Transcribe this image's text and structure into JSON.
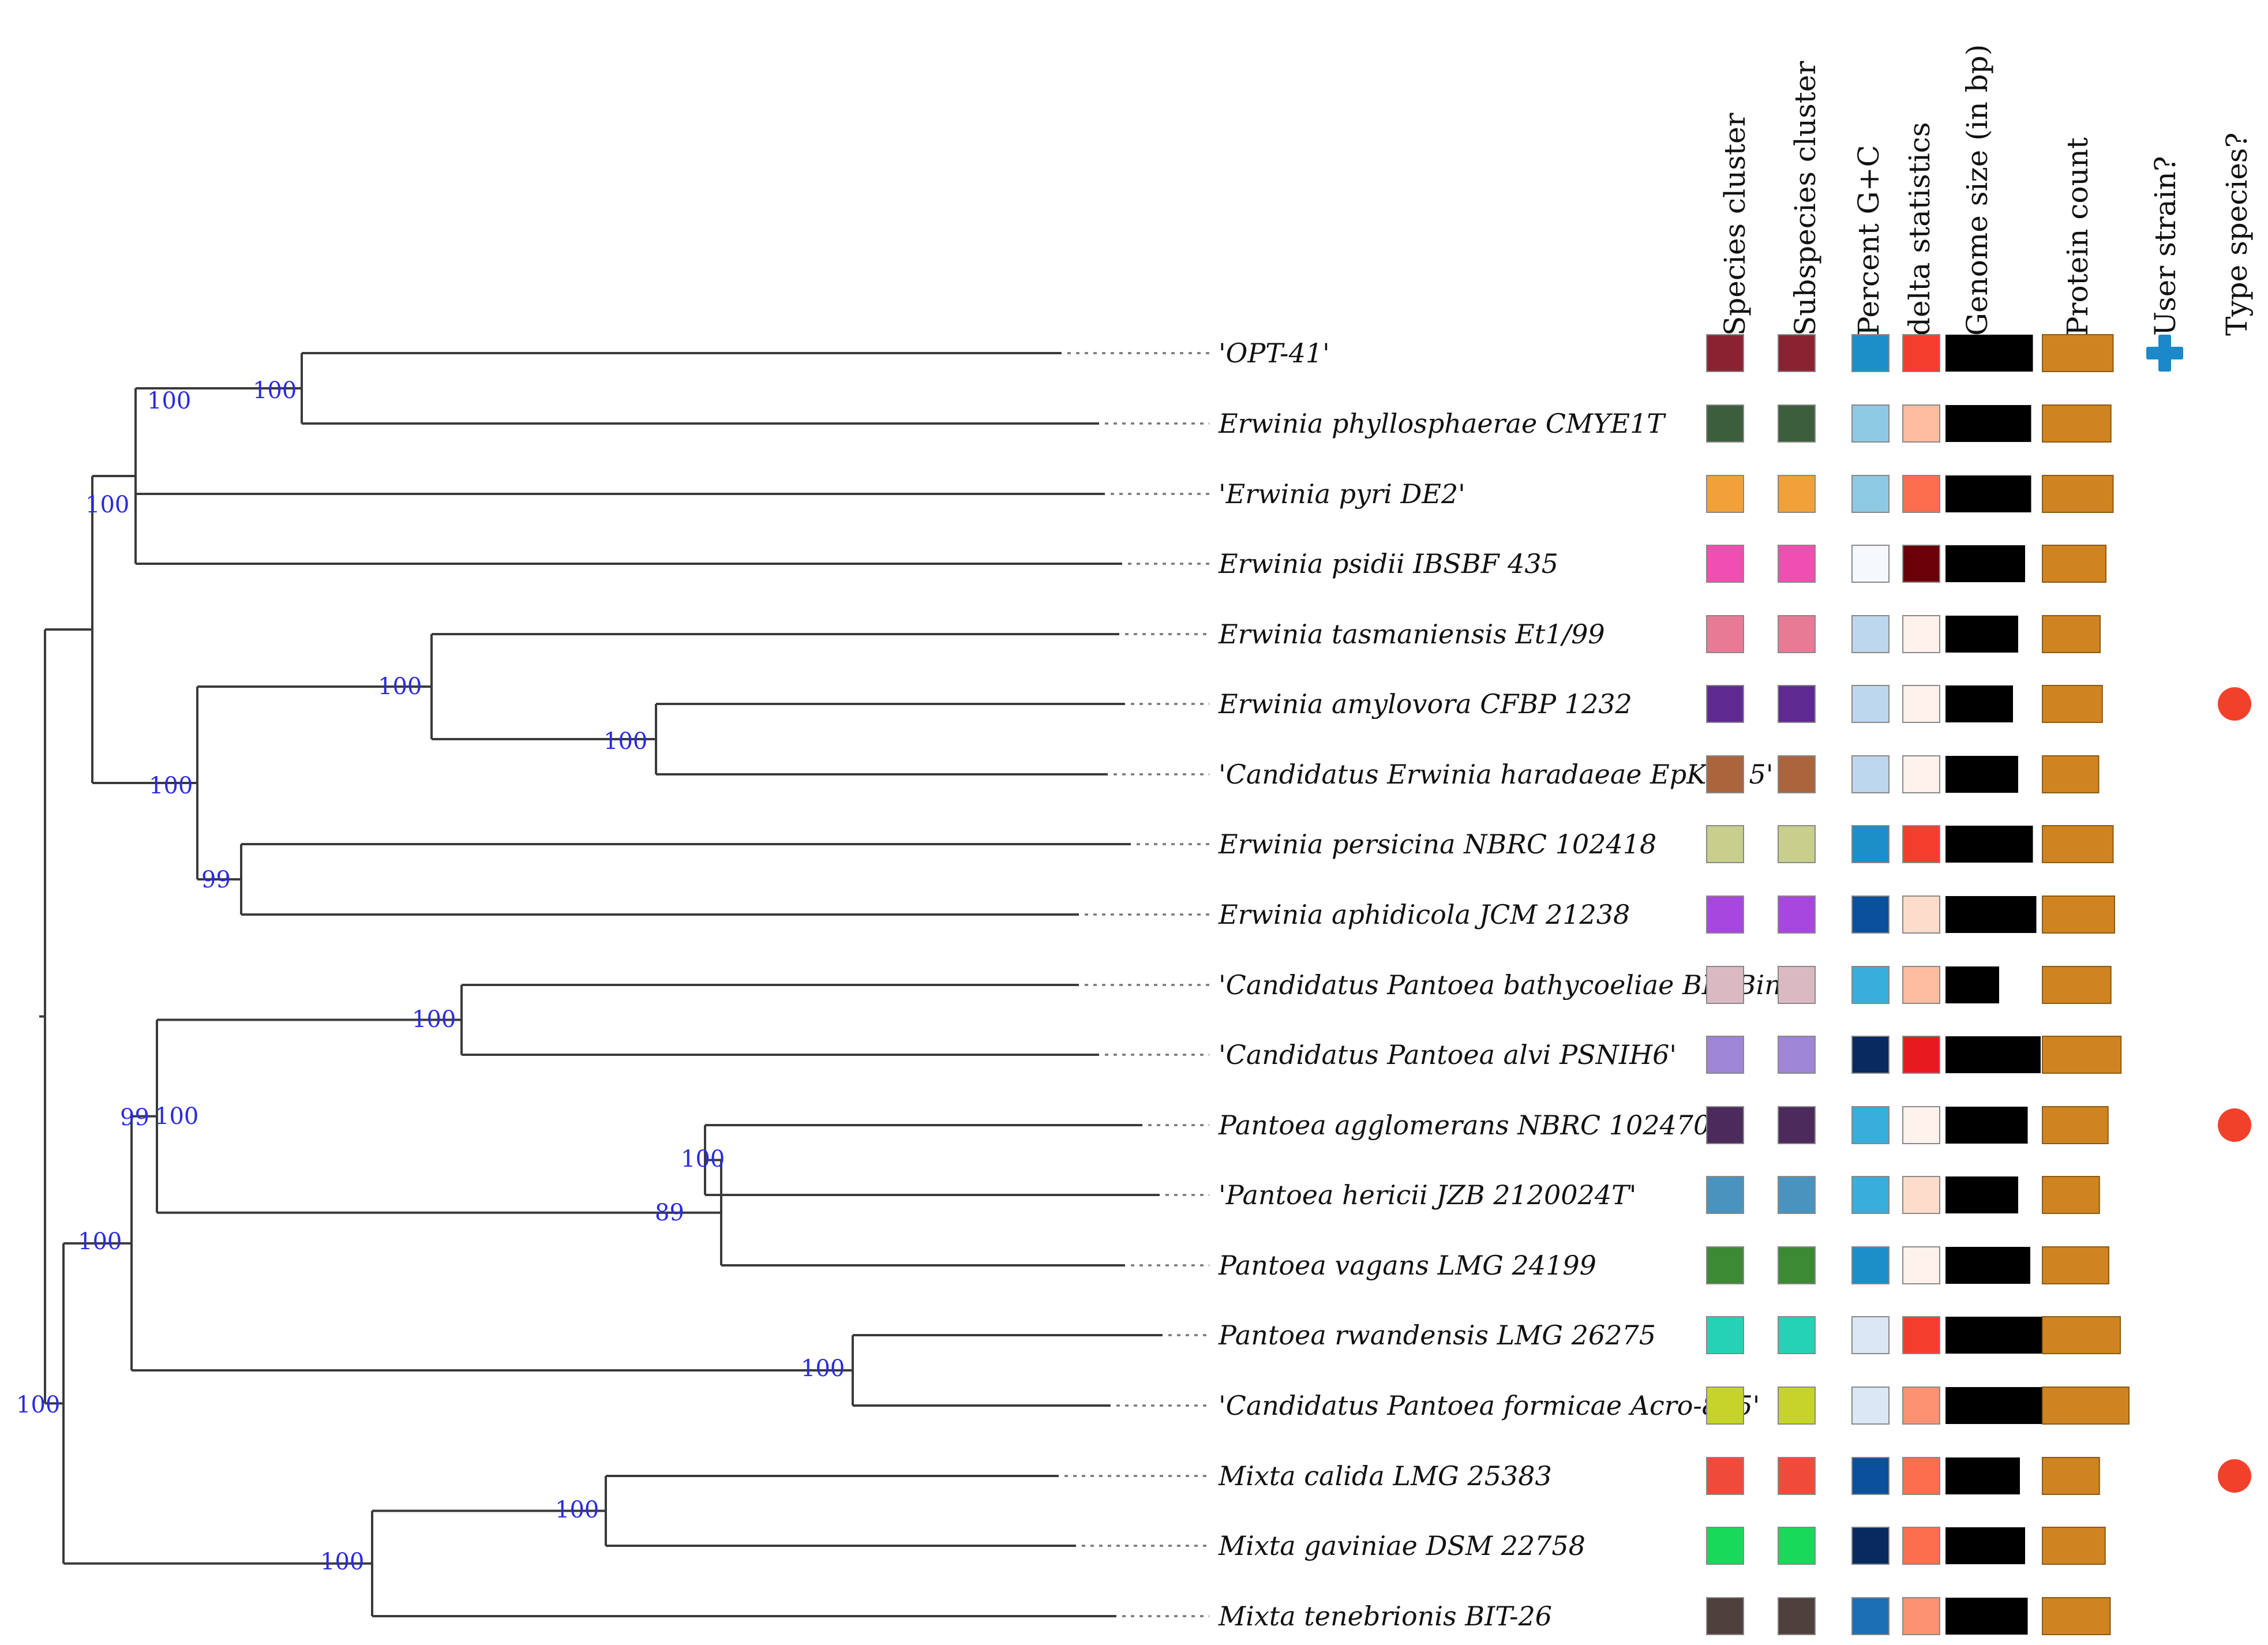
{
  "headers": {
    "species_cluster": "Species cluster",
    "subspecies_cluster": "Subspecies cluster",
    "percent_gc": "Percent G+C",
    "delta_statistics": "delta statistics",
    "genome_size": "Genome size (in bp)",
    "protein_count": "Protein count",
    "user_strain": "User strain?",
    "type_species": "Type species?"
  },
  "colors": {
    "branch": "#3a3a3a",
    "bootstrap_text": "#2a2ae0",
    "genome_bar": "#000000",
    "protein_bar": "#d08421",
    "user_marker": "#1a88c9",
    "type_marker": "#f2412b"
  },
  "user_marker_icon": "plus-icon",
  "type_marker_icon": "filled-circle-icon",
  "nodes": [
    {
      "id": "root",
      "support": "100"
    },
    {
      "id": "n_erw",
      "support": "100"
    },
    {
      "id": "n_a",
      "support": "100"
    },
    {
      "id": "n_opt",
      "support": "100"
    },
    {
      "id": "n_b",
      "support": "100"
    },
    {
      "id": "n_c",
      "support": "100"
    },
    {
      "id": "n_d",
      "support": "100"
    },
    {
      "id": "n_e",
      "support": "99"
    },
    {
      "id": "n_p",
      "support": "100"
    },
    {
      "id": "n_q",
      "support": "99"
    },
    {
      "id": "n_r",
      "support": "100"
    },
    {
      "id": "n_s",
      "support": "100"
    },
    {
      "id": "n_t",
      "support": "89"
    },
    {
      "id": "n_u",
      "support": "100"
    },
    {
      "id": "n_m",
      "support": "100"
    },
    {
      "id": "n_n",
      "support": "100"
    }
  ],
  "leaves": [
    {
      "label": "'OPT-41'",
      "species_color": "#8b2232",
      "subspecies_color": "#8b2232",
      "gc_color": "#1c8fc8",
      "delta_color": "#f53d2e",
      "genome_size": 5.05,
      "protein_count": 4.9,
      "user_strain": true,
      "type_species": false
    },
    {
      "label": "Erwinia phyllosphaerae CMYE1T",
      "species_color": "#3d5e3d",
      "subspecies_color": "#3d5e3d",
      "gc_color": "#8ec9e3",
      "delta_color": "#fdbca0",
      "genome_size": 4.95,
      "protein_count": 4.75,
      "user_strain": false,
      "type_species": false
    },
    {
      "label": "'Erwinia pyri DE2'",
      "species_color": "#f2a03a",
      "subspecies_color": "#f2a03a",
      "gc_color": "#8ec9e3",
      "delta_color": "#fc6e4e",
      "genome_size": 4.95,
      "protein_count": 4.9,
      "user_strain": false,
      "type_species": false
    },
    {
      "label": "Erwinia psidii IBSBF 435",
      "species_color": "#f04eb0",
      "subspecies_color": "#f04eb0",
      "gc_color": "#f5f9fd",
      "delta_color": "#6b0009",
      "genome_size": 4.6,
      "protein_count": 4.4,
      "user_strain": false,
      "type_species": false
    },
    {
      "label": "Erwinia tasmaniensis Et1/99",
      "species_color": "#e87a96",
      "subspecies_color": "#e87a96",
      "gc_color": "#bdd7ee",
      "delta_color": "#fff1ec",
      "genome_size": 4.2,
      "protein_count": 4.0,
      "user_strain": false,
      "type_species": false
    },
    {
      "label": "Erwinia amylovora CFBP 1232",
      "species_color": "#5e2a92",
      "subspecies_color": "#5e2a92",
      "gc_color": "#bdd7ee",
      "delta_color": "#fff1ec",
      "genome_size": 3.9,
      "protein_count": 4.15,
      "user_strain": false,
      "type_species": true
    },
    {
      "label": "'Candidatus Erwinia haradaeae EpK1/15'",
      "species_color": "#ab643c",
      "subspecies_color": "#ab643c",
      "gc_color": "#bdd7ee",
      "delta_color": "#fff1ec",
      "genome_size": 4.2,
      "protein_count": 3.9,
      "user_strain": false,
      "type_species": false
    },
    {
      "label": "Erwinia persicina NBRC 102418",
      "species_color": "#c8cf8d",
      "subspecies_color": "#c8cf8d",
      "gc_color": "#1c8fc8",
      "delta_color": "#f53d2e",
      "genome_size": 5.05,
      "protein_count": 4.9,
      "user_strain": false,
      "type_species": false
    },
    {
      "label": "Erwinia aphidicola JCM 21238",
      "species_color": "#a846e0",
      "subspecies_color": "#a846e0",
      "gc_color": "#0b509c",
      "delta_color": "#fedccc",
      "genome_size": 5.25,
      "protein_count": 5.0,
      "user_strain": false,
      "type_species": false
    },
    {
      "label": "'Candidatus Pantoea bathycoeliae BD_Bin1'",
      "species_color": "#dbb9c3",
      "subspecies_color": "#dbb9c3",
      "gc_color": "#38aedb",
      "delta_color": "#fdbca0",
      "genome_size": 3.1,
      "protein_count": 4.75,
      "user_strain": false,
      "type_species": false
    },
    {
      "label": "'Candidatus Pantoea alvi PSNIH6'",
      "species_color": "#9e85d6",
      "subspecies_color": "#9e85d6",
      "gc_color": "#082a5e",
      "delta_color": "#e81a1f",
      "genome_size": 5.5,
      "protein_count": 5.45,
      "user_strain": false,
      "type_species": false
    },
    {
      "label": "Pantoea agglomerans NBRC 102470",
      "species_color": "#4d2a5c",
      "subspecies_color": "#4d2a5c",
      "gc_color": "#38aedb",
      "delta_color": "#fff1ec",
      "genome_size": 4.75,
      "protein_count": 4.55,
      "user_strain": false,
      "type_species": true
    },
    {
      "label": "'Pantoea hericii JZB 2120024T'",
      "species_color": "#4b93bf",
      "subspecies_color": "#4b93bf",
      "gc_color": "#38aedb",
      "delta_color": "#fedccc",
      "genome_size": 4.2,
      "protein_count": 3.95,
      "user_strain": false,
      "type_species": false
    },
    {
      "label": "Pantoea vagans LMG 24199",
      "species_color": "#3c8a34",
      "subspecies_color": "#3c8a34",
      "gc_color": "#1c8fc8",
      "delta_color": "#fff1ec",
      "genome_size": 4.9,
      "protein_count": 4.6,
      "user_strain": false,
      "type_species": false
    },
    {
      "label": "Pantoea rwandensis LMG 26275",
      "species_color": "#26d2b6",
      "subspecies_color": "#26d2b6",
      "gc_color": "#dae8f5",
      "delta_color": "#f53d2e",
      "genome_size": 5.95,
      "protein_count": 5.4,
      "user_strain": false,
      "type_species": false
    },
    {
      "label": "'Candidatus Pantoea formicae Acro-805'",
      "species_color": "#c6d42a",
      "subspecies_color": "#c6d42a",
      "gc_color": "#dae8f5",
      "delta_color": "#fc9272",
      "genome_size": 6.05,
      "protein_count": 6.0,
      "user_strain": false,
      "type_species": false
    },
    {
      "label": "Mixta calida LMG 25383",
      "species_color": "#f04b3a",
      "subspecies_color": "#f04b3a",
      "gc_color": "#0b509c",
      "delta_color": "#fc6e4e",
      "genome_size": 4.3,
      "protein_count": 3.95,
      "user_strain": false,
      "type_species": true
    },
    {
      "label": "Mixta gaviniae DSM 22758",
      "species_color": "#18d95a",
      "subspecies_color": "#18d95a",
      "gc_color": "#082a5e",
      "delta_color": "#fc6e4e",
      "genome_size": 4.6,
      "protein_count": 4.35,
      "user_strain": false,
      "type_species": false
    },
    {
      "label": "Mixta tenebrionis BIT-26",
      "species_color": "#4e403d",
      "subspecies_color": "#4e403d",
      "gc_color": "#1d6fb5",
      "delta_color": "#fc9272",
      "genome_size": 4.75,
      "protein_count": 4.7,
      "user_strain": false,
      "type_species": false
    }
  ]
}
